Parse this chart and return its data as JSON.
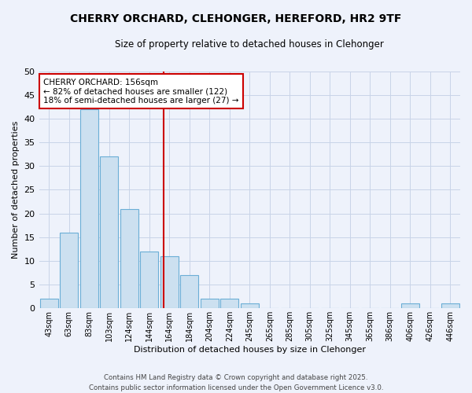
{
  "title": "CHERRY ORCHARD, CLEHONGER, HEREFORD, HR2 9TF",
  "subtitle": "Size of property relative to detached houses in Clehonger",
  "xlabel": "Distribution of detached houses by size in Clehonger",
  "ylabel": "Number of detached properties",
  "bar_labels": [
    "43sqm",
    "63sqm",
    "83sqm",
    "103sqm",
    "124sqm",
    "144sqm",
    "164sqm",
    "184sqm",
    "204sqm",
    "224sqm",
    "245sqm",
    "265sqm",
    "285sqm",
    "305sqm",
    "325sqm",
    "345sqm",
    "365sqm",
    "386sqm",
    "406sqm",
    "426sqm",
    "446sqm"
  ],
  "bar_values": [
    2,
    16,
    42,
    32,
    21,
    12,
    11,
    7,
    2,
    2,
    1,
    0,
    0,
    0,
    0,
    0,
    0,
    0,
    1,
    0,
    1
  ],
  "bar_color": "#cce0f0",
  "bar_edge_color": "#6baed6",
  "vline_color": "#cc0000",
  "annotation_text": "CHERRY ORCHARD: 156sqm\n← 82% of detached houses are smaller (122)\n18% of semi-detached houses are larger (27) →",
  "annotation_box_color": "#ffffff",
  "annotation_box_edge_color": "#cc0000",
  "ylim": [
    0,
    50
  ],
  "yticks": [
    0,
    5,
    10,
    15,
    20,
    25,
    30,
    35,
    40,
    45,
    50
  ],
  "footnote": "Contains HM Land Registry data © Crown copyright and database right 2025.\nContains public sector information licensed under the Open Government Licence v3.0.",
  "bg_color": "#eef2fb",
  "grid_color": "#c8d4e8"
}
